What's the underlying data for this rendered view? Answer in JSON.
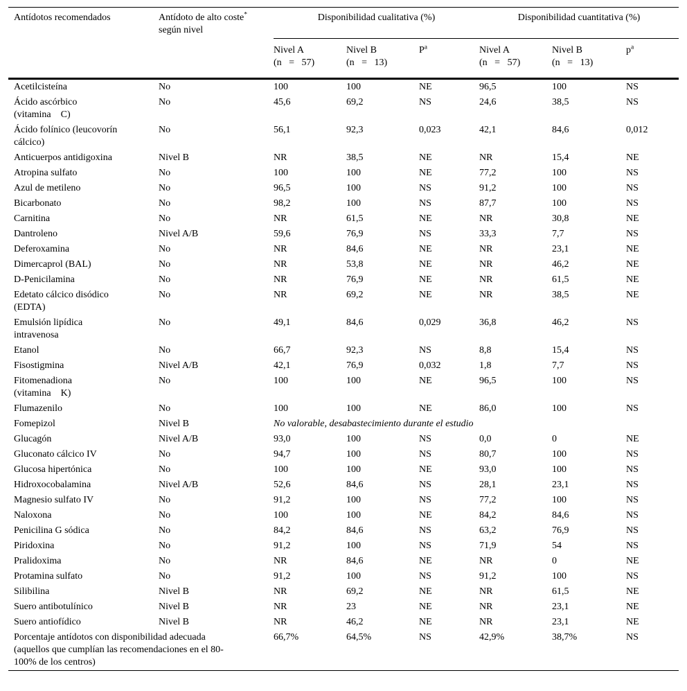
{
  "table": {
    "header": {
      "col1": "Antídotos recomendados",
      "col2_line1": "Antídoto de alto coste",
      "col2_sup": "*",
      "col2_line2": "según nivel",
      "group1": "Disponibilidad cualitativa (%)",
      "group2": "Disponibilidad cuantitativa (%)",
      "sub": {
        "nivelA": "Nivel A",
        "nivelB": "Nivel B",
        "nA": "(n   =   57)",
        "nB": "(n   =   13)",
        "P_qual": "P",
        "p_quant": "p",
        "p_sup": "a"
      }
    },
    "rows": [
      {
        "name": "Acetilcisteína",
        "cost": "No",
        "values": [
          "100",
          "100",
          "NE",
          "96,5",
          "100",
          "NS"
        ]
      },
      {
        "name": "Ácido ascórbico\n(vitamina    C)",
        "cost": "No",
        "values": [
          "45,6",
          "69,2",
          "NS",
          "24,6",
          "38,5",
          "NS"
        ]
      },
      {
        "name": "Ácido folínico (leucovorín\ncálcico)",
        "cost": "No",
        "values": [
          "56,1",
          "92,3",
          "0,023",
          "42,1",
          "84,6",
          "0,012"
        ]
      },
      {
        "name": "Anticuerpos antidigoxina",
        "cost": "Nivel B",
        "values": [
          "NR",
          "38,5",
          "NE",
          "NR",
          "15,4",
          "NE"
        ]
      },
      {
        "name": "Atropina sulfato",
        "cost": "No",
        "values": [
          "100",
          "100",
          "NE",
          "77,2",
          "100",
          "NS"
        ]
      },
      {
        "name": "Azul de metileno",
        "cost": "No",
        "values": [
          "96,5",
          "100",
          "NS",
          "91,2",
          "100",
          "NS"
        ]
      },
      {
        "name": "Bicarbonato",
        "cost": "No",
        "values": [
          "98,2",
          "100",
          "NS",
          "87,7",
          "100",
          "NS"
        ]
      },
      {
        "name": "Carnitina",
        "cost": "No",
        "values": [
          "NR",
          "61,5",
          "NE",
          "NR",
          "30,8",
          "NE"
        ]
      },
      {
        "name": "Dantroleno",
        "cost": "Nivel A/B",
        "values": [
          "59,6",
          "76,9",
          "NS",
          "33,3",
          "7,7",
          "NS"
        ]
      },
      {
        "name": "Deferoxamina",
        "cost": "No",
        "values": [
          "NR",
          "84,6",
          "NE",
          "NR",
          "23,1",
          "NE"
        ]
      },
      {
        "name": "Dimercaprol (BAL)",
        "cost": "No",
        "values": [
          "NR",
          "53,8",
          "NE",
          "NR",
          "46,2",
          "NE"
        ]
      },
      {
        "name": "D-Penicilamina",
        "cost": "No",
        "values": [
          "NR",
          "76,9",
          "NE",
          "NR",
          "61,5",
          "NE"
        ]
      },
      {
        "name": "Edetato cálcico disódico\n(EDTA)",
        "cost": "No",
        "values": [
          "NR",
          "69,2",
          "NE",
          "NR",
          "38,5",
          "NE"
        ]
      },
      {
        "name": "Emulsión lipídica\nintravenosa",
        "cost": "No",
        "values": [
          "49,1",
          "84,6",
          "0,029",
          "36,8",
          "46,2",
          "NS"
        ]
      },
      {
        "name": "Etanol",
        "cost": "No",
        "values": [
          "66,7",
          "92,3",
          "NS",
          "8,8",
          "15,4",
          "NS"
        ]
      },
      {
        "name": "Fisostigmina",
        "cost": "Nivel A/B",
        "values": [
          "42,1",
          "76,9",
          "0,032",
          "1,8",
          "7,7",
          "NS"
        ]
      },
      {
        "name": "Fitomenadiona\n(vitamina    K)",
        "cost": "No",
        "values": [
          "100",
          "100",
          "NE",
          "96,5",
          "100",
          "NS"
        ]
      },
      {
        "name": "Flumazenilo",
        "cost": "No",
        "values": [
          "100",
          "100",
          "NE",
          "86,0",
          "100",
          "NS"
        ]
      },
      {
        "name": "Fomepizol",
        "cost": "Nivel B",
        "span_text": "No valorable, desabastecimiento durante el estudio"
      },
      {
        "name": "Glucagón",
        "cost": "Nivel A/B",
        "values": [
          "93,0",
          "100",
          "NS",
          "0,0",
          "0",
          "NE"
        ]
      },
      {
        "name": "Gluconato cálcico IV",
        "cost": "No",
        "values": [
          "94,7",
          "100",
          "NS",
          "80,7",
          "100",
          "NS"
        ]
      },
      {
        "name": "Glucosa hipertónica",
        "cost": "No",
        "values": [
          "100",
          "100",
          "NE",
          "93,0",
          "100",
          "NS"
        ]
      },
      {
        "name": "Hidroxocobalamina",
        "cost": "Nivel A/B",
        "values": [
          "52,6",
          "84,6",
          "NS",
          "28,1",
          "23,1",
          "NS"
        ]
      },
      {
        "name": "Magnesio sulfato IV",
        "cost": "No",
        "values": [
          "91,2",
          "100",
          "NS",
          "77,2",
          "100",
          "NS"
        ]
      },
      {
        "name": "Naloxona",
        "cost": "No",
        "values": [
          "100",
          "100",
          "NE",
          "84,2",
          "84,6",
          "NS"
        ]
      },
      {
        "name": "Penicilina G sódica",
        "cost": "No",
        "values": [
          "84,2",
          "84,6",
          "NS",
          "63,2",
          "76,9",
          "NS"
        ]
      },
      {
        "name": "Piridoxina",
        "cost": "No",
        "values": [
          "91,2",
          "100",
          "NS",
          "71,9",
          "54",
          "NS"
        ]
      },
      {
        "name": "Pralidoxima",
        "cost": "No",
        "values": [
          "NR",
          "84,6",
          "NE",
          "NR",
          "0",
          "NE"
        ]
      },
      {
        "name": "Protamina sulfato",
        "cost": "No",
        "values": [
          "91,2",
          "100",
          "NS",
          "91,2",
          "100",
          "NS"
        ]
      },
      {
        "name": "Silibilina",
        "cost": "Nivel B",
        "values": [
          "NR",
          "69,2",
          "NE",
          "NR",
          "61,5",
          "NE"
        ]
      },
      {
        "name": "Suero antibotulínico",
        "cost": "Nivel B",
        "values": [
          "NR",
          "23",
          "NE",
          "NR",
          "23,1",
          "NE"
        ]
      },
      {
        "name": "Suero antiofídico",
        "cost": "Nivel B",
        "values": [
          "NR",
          "46,2",
          "NE",
          "NR",
          "23,1",
          "NE"
        ]
      },
      {
        "name": "Porcentaje antídotos con disponibilidad adecuada\n(aquellos que cumplían las recomendaciones en el 80-\n100% de los centros)",
        "cost": "",
        "name_colspan": 2,
        "values": [
          "66,7%",
          "64,5%",
          "NS",
          "42,9%",
          "38,7%",
          "NS"
        ]
      }
    ]
  }
}
